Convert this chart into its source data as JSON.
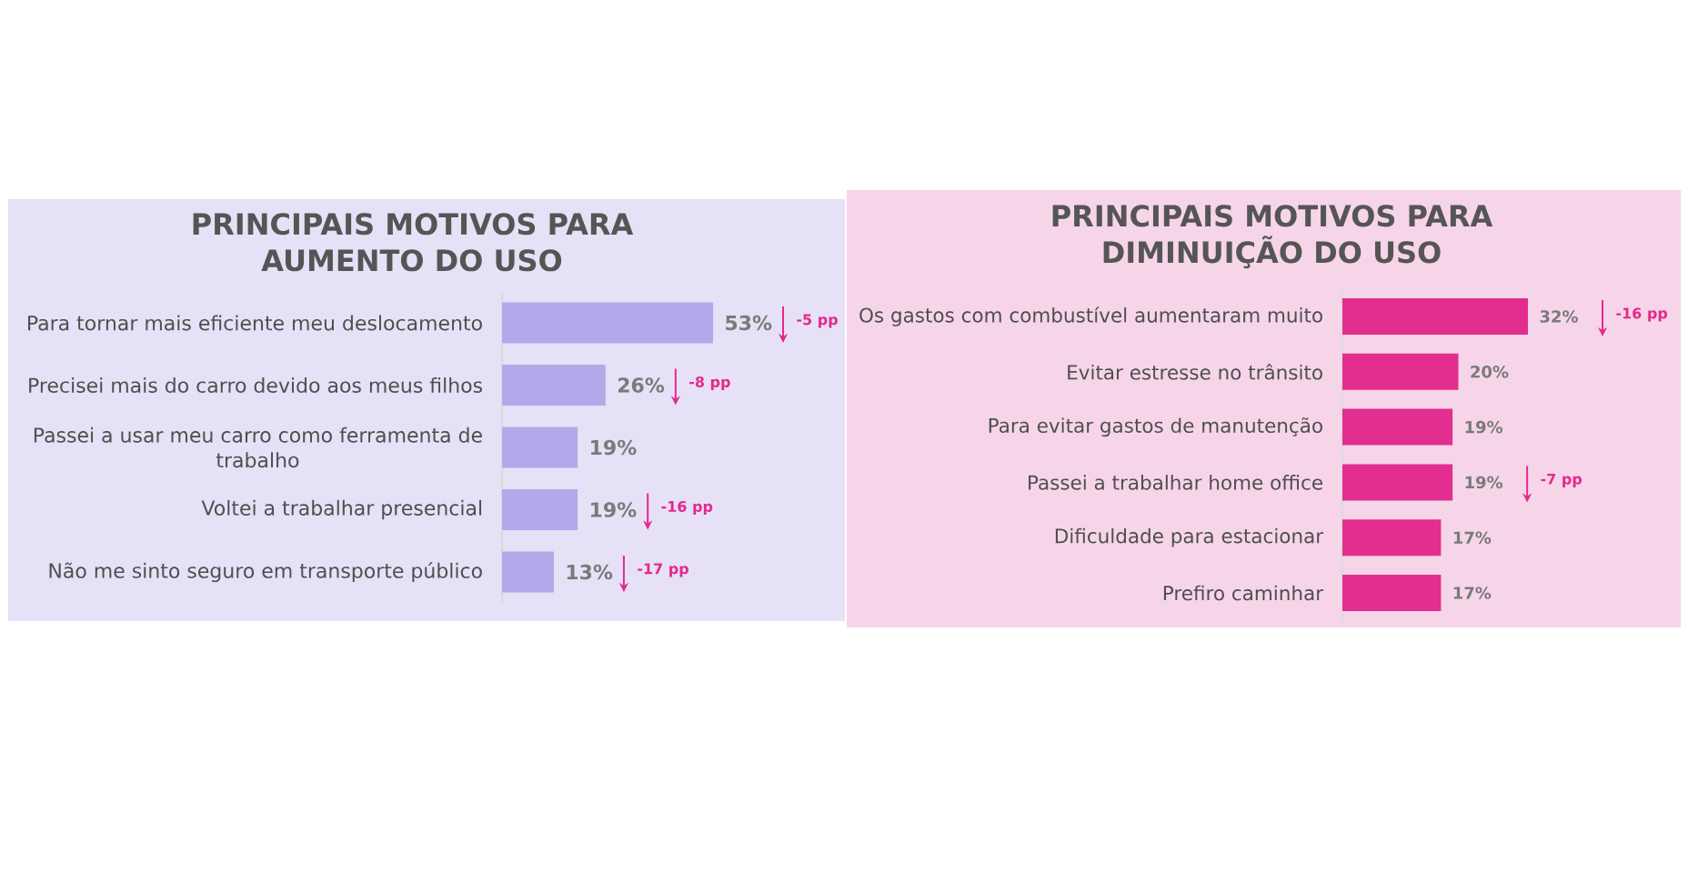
{
  "chart_data": [
    {
      "type": "bar",
      "orientation": "horizontal",
      "title": "PRINCIPAIS MOTIVOS PARA AUMENTO DO USO",
      "categories": [
        "Para tornar mais eficiente meu deslocamento",
        "Precisei mais do carro devido aos meus filhos",
        "Passei a usar meu carro como ferramenta de trabalho",
        "Voltei a trabalhar presencial",
        "Não me sinto seguro em transporte público"
      ],
      "values": [
        53,
        26,
        19,
        19,
        13
      ],
      "color": "#b4a8eb",
      "value_labels": [
        "53%",
        "26%",
        "19%",
        "19%",
        "13%"
      ],
      "tick_labels": "y",
      "annotations": [
        "-5 pp",
        "-8 pp",
        "-16 pp",
        "-17 pp"
      ]
    },
    {
      "type": "bar",
      "orientation": "horizontal",
      "title": "PRINCIPAIS MOTIVOS PARA DIMINUIÇÃO DO USO",
      "categories": [
        "Os gastos com combustível aumentaram muito",
        "Evitar estresse no trânsito",
        "Para evitar gastos de manutenção",
        "Passei a trabalhar home office",
        "Dificuldade para estacionar",
        "Prefiro caminhar"
      ],
      "values": [
        32,
        20,
        19,
        19,
        17,
        17
      ],
      "color": "#e22e8e",
      "value_labels": [
        "32%",
        "20%",
        "19%",
        "19%",
        "17%",
        "17%"
      ],
      "tick_labels": "y",
      "annotations": [
        "-16 pp",
        "-7 pp"
      ]
    }
  ]
}
